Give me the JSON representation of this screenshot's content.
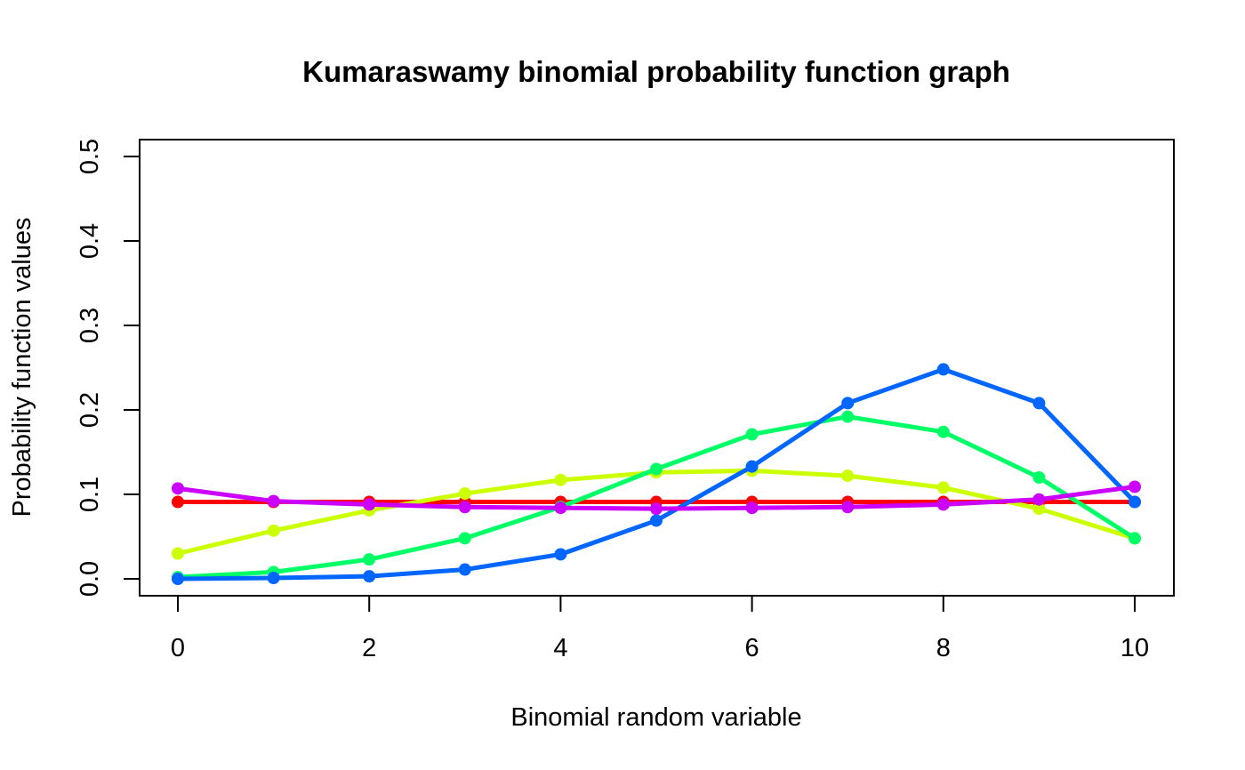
{
  "chart_data": {
    "type": "line",
    "title": "Kumaraswamy binomial probability function graph",
    "xlabel": "Binomial random variable",
    "ylabel": "Probability function values",
    "x": [
      0,
      1,
      2,
      3,
      4,
      5,
      6,
      7,
      8,
      9,
      10
    ],
    "xlim": [
      0,
      10
    ],
    "ylim": [
      0,
      0.5
    ],
    "xticks": [
      "0",
      "2",
      "4",
      "6",
      "8",
      "10"
    ],
    "yticks": [
      "0.0",
      "0.1",
      "0.2",
      "0.3",
      "0.4",
      "0.5"
    ],
    "grid": false,
    "legend": "none",
    "series": [
      {
        "color": "#ff0000",
        "values": [
          0.091,
          0.091,
          0.091,
          0.091,
          0.091,
          0.091,
          0.091,
          0.091,
          0.091,
          0.091,
          0.091
        ]
      },
      {
        "color": "#ccff00",
        "values": [
          0.03,
          0.057,
          0.081,
          0.101,
          0.117,
          0.126,
          0.128,
          0.122,
          0.108,
          0.083,
          0.048
        ]
      },
      {
        "color": "#00ff66",
        "values": [
          0.002,
          0.008,
          0.023,
          0.048,
          0.085,
          0.13,
          0.171,
          0.192,
          0.174,
          0.12,
          0.048
        ]
      },
      {
        "color": "#0066ff",
        "values": [
          0.0,
          0.001,
          0.003,
          0.011,
          0.029,
          0.069,
          0.133,
          0.208,
          0.248,
          0.208,
          0.091
        ]
      },
      {
        "color": "#cc00ff",
        "values": [
          0.107,
          0.092,
          0.088,
          0.085,
          0.084,
          0.083,
          0.084,
          0.085,
          0.088,
          0.094,
          0.109
        ]
      }
    ]
  }
}
